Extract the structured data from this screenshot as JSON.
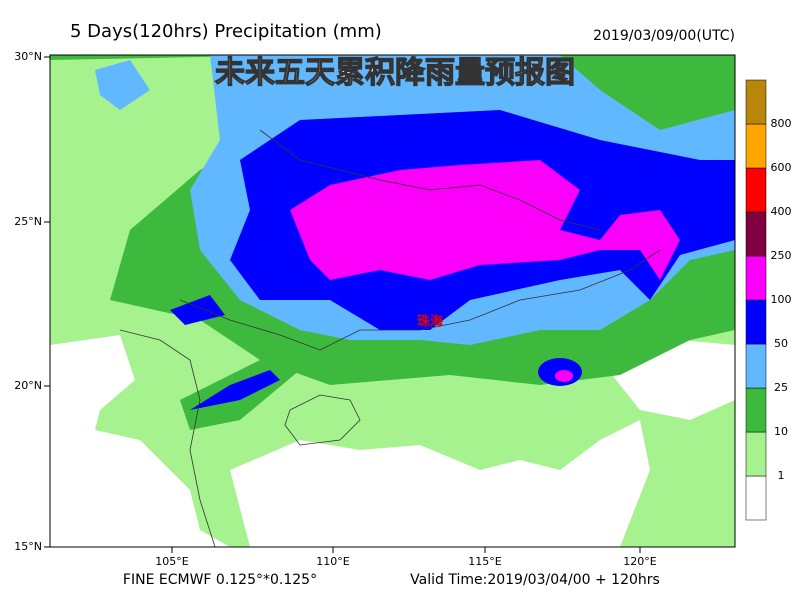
{
  "header": {
    "title": "5 Days(120hrs) Precipitation (mm)",
    "date": "2019/03/09/00(UTC)",
    "overlay": "未来五天累积降雨量预报图"
  },
  "map": {
    "lat_labels": [
      "30°N",
      "25°N",
      "20°N",
      "15°N"
    ],
    "lon_labels": [
      "105°E",
      "110°E",
      "115°E",
      "120°E"
    ],
    "city": "珠海"
  },
  "colorbar": {
    "labels": [
      "1",
      "10",
      "25",
      "50",
      "100",
      "250",
      "400",
      "600",
      "800"
    ],
    "colors": [
      "#ffffff",
      "#a6f28f",
      "#3dba3d",
      "#61b8ff",
      "#0000ff",
      "#fa00fa",
      "#800040",
      "#ff0000",
      "#ffa500",
      "#b8860b"
    ]
  },
  "footer": {
    "model": "FINE ECMWF 0.125°*0.125°",
    "valid": "Valid Time:2019/03/04/00 + 120hrs"
  }
}
